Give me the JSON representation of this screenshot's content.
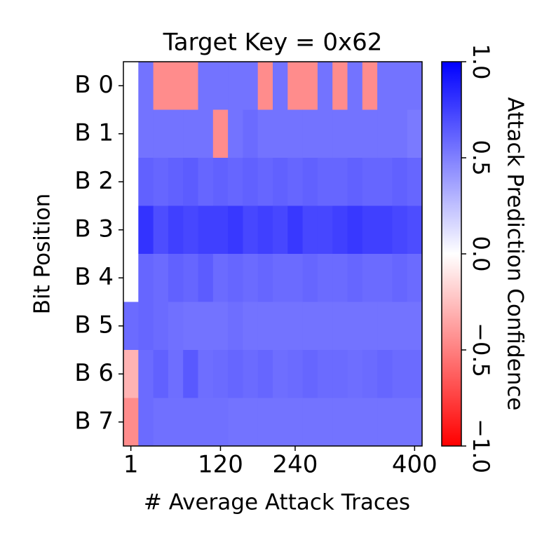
{
  "chart_data": {
    "type": "heatmap",
    "title": "Target Key = 0x62",
    "x_label": "# Average Attack Traces",
    "y_label": "Bit Position",
    "colorbar_label": "Attack Prediction Confidence",
    "colormap": "bwr",
    "categories": [
      1,
      null,
      null,
      null,
      null,
      null,
      120,
      null,
      null,
      null,
      null,
      240,
      null,
      null,
      null,
      null,
      null,
      null,
      null,
      400
    ],
    "y_categories": [
      "B 0",
      "B 1",
      "B 2",
      "B 3",
      "B 4",
      "B 5",
      "B 6",
      "B 7"
    ],
    "values": [
      [
        0,
        0.55,
        -0.45,
        -0.45,
        -0.45,
        0.55,
        0.55,
        0.55,
        0.55,
        -0.45,
        0.55,
        -0.45,
        -0.45,
        0.55,
        -0.45,
        0.55,
        -0.45,
        0.55,
        0.55,
        0.55
      ],
      [
        0,
        0.55,
        0.55,
        0.55,
        0.55,
        0.55,
        -0.45,
        0.55,
        0.58,
        0.55,
        0.55,
        0.55,
        0.55,
        0.55,
        0.55,
        0.55,
        0.55,
        0.55,
        0.55,
        0.52
      ],
      [
        0,
        0.62,
        0.6,
        0.62,
        0.64,
        0.6,
        0.62,
        0.6,
        0.62,
        0.6,
        0.62,
        0.6,
        0.62,
        0.6,
        0.6,
        0.62,
        0.6,
        0.6,
        0.62,
        0.6
      ],
      [
        0,
        0.8,
        0.7,
        0.75,
        0.72,
        0.75,
        0.75,
        0.78,
        0.72,
        0.75,
        0.72,
        0.78,
        0.72,
        0.72,
        0.75,
        0.78,
        0.75,
        0.75,
        0.72,
        0.7
      ],
      [
        0,
        0.6,
        0.58,
        0.62,
        0.6,
        0.64,
        0.58,
        0.6,
        0.58,
        0.6,
        0.58,
        0.58,
        0.6,
        0.58,
        0.58,
        0.6,
        0.58,
        0.58,
        0.6,
        0.58
      ],
      [
        0.58,
        0.6,
        0.58,
        0.56,
        0.55,
        0.55,
        0.55,
        0.57,
        0.55,
        0.55,
        0.55,
        0.55,
        0.55,
        0.55,
        0.55,
        0.55,
        0.55,
        0.55,
        0.55,
        0.55
      ],
      [
        -0.3,
        0.58,
        0.62,
        0.57,
        0.65,
        0.57,
        0.58,
        0.6,
        0.58,
        0.6,
        0.57,
        0.58,
        0.6,
        0.58,
        0.58,
        0.57,
        0.58,
        0.6,
        0.58,
        0.58
      ],
      [
        -0.45,
        0.58,
        0.56,
        0.56,
        0.56,
        0.56,
        0.56,
        0.55,
        0.55,
        0.55,
        0.55,
        0.55,
        0.55,
        0.55,
        0.55,
        0.55,
        0.55,
        0.55,
        0.55,
        0.55
      ]
    ],
    "zlim": [
      -1,
      1
    ],
    "zticks": [
      {
        "value": -1,
        "label": "−1.0"
      },
      {
        "value": -0.5,
        "label": "−0.5"
      },
      {
        "value": 0,
        "label": "0.0"
      },
      0.5,
      {
        "value": 1,
        "label": "1.0"
      }
    ]
  }
}
